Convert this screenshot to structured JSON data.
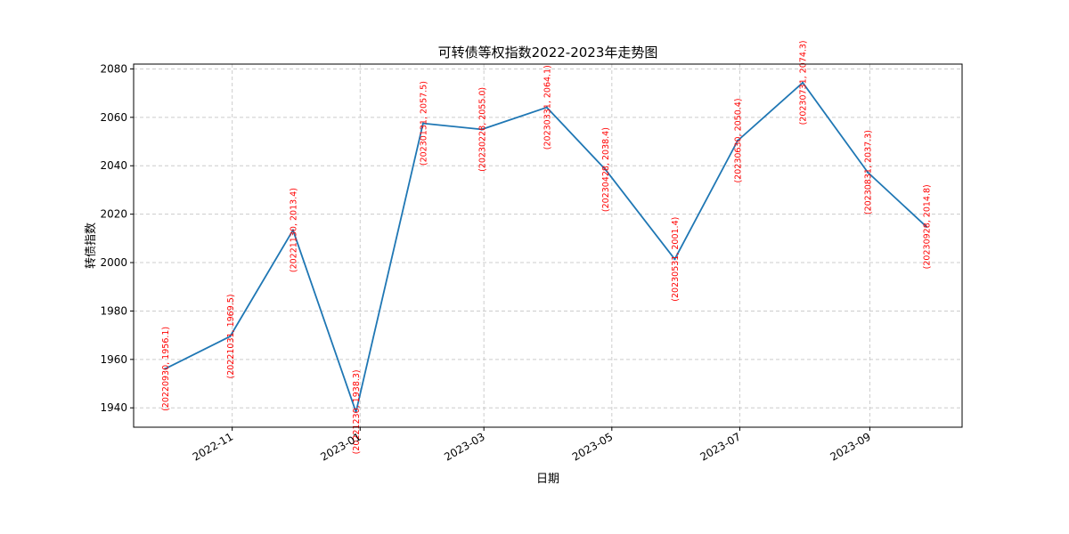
{
  "chart_data": {
    "type": "line",
    "title": "可转债等权指数2022-2023年走势图",
    "xlabel": "日期",
    "ylabel": "转债指数",
    "x_tick_labels": [
      "2022-11",
      "2023-01",
      "2023-03",
      "2023-05",
      "2023-07",
      "2023-09"
    ],
    "x_ticks": [
      "2022-11-01",
      "2023-01-01",
      "2023-03-01",
      "2023-05-01",
      "2023-07-01",
      "2023-09-01"
    ],
    "xlim": [
      "2022-09-15",
      "2023-10-15"
    ],
    "ylim": [
      1932,
      2082
    ],
    "y_ticks": [
      1940,
      1960,
      1980,
      2000,
      2020,
      2040,
      2060,
      2080
    ],
    "grid": true,
    "series": [
      {
        "color": "#1f77b4",
        "points": [
          {
            "date": "2022-09-30",
            "value": 1956.1,
            "label": "(20220930, 1956.1)"
          },
          {
            "date": "2022-10-31",
            "value": 1969.5,
            "label": "(20221031, 1969.5)"
          },
          {
            "date": "2022-11-30",
            "value": 2013.4,
            "label": "(20221130, 2013.4)"
          },
          {
            "date": "2022-12-30",
            "value": 1938.3,
            "label": "(20221230, 1938.3)"
          },
          {
            "date": "2023-01-31",
            "value": 2057.5,
            "label": "(20230131, 2057.5)"
          },
          {
            "date": "2023-02-28",
            "value": 2055.0,
            "label": "(20230228, 2055.0)"
          },
          {
            "date": "2023-03-31",
            "value": 2064.1,
            "label": "(20230331, 2064.1)"
          },
          {
            "date": "2023-04-28",
            "value": 2038.4,
            "label": "(20230428, 2038.4)"
          },
          {
            "date": "2023-05-31",
            "value": 2001.4,
            "label": "(20230531, 2001.4)"
          },
          {
            "date": "2023-06-30",
            "value": 2050.4,
            "label": "(20230630, 2050.4)"
          },
          {
            "date": "2023-07-31",
            "value": 2074.3,
            "label": "(20230731, 2074.3)"
          },
          {
            "date": "2023-08-31",
            "value": 2037.3,
            "label": "(20230831, 2037.3)"
          },
          {
            "date": "2023-09-28",
            "value": 2014.8,
            "label": "(20230928, 2014.8)"
          }
        ]
      }
    ],
    "label_color": "#ff0000"
  }
}
